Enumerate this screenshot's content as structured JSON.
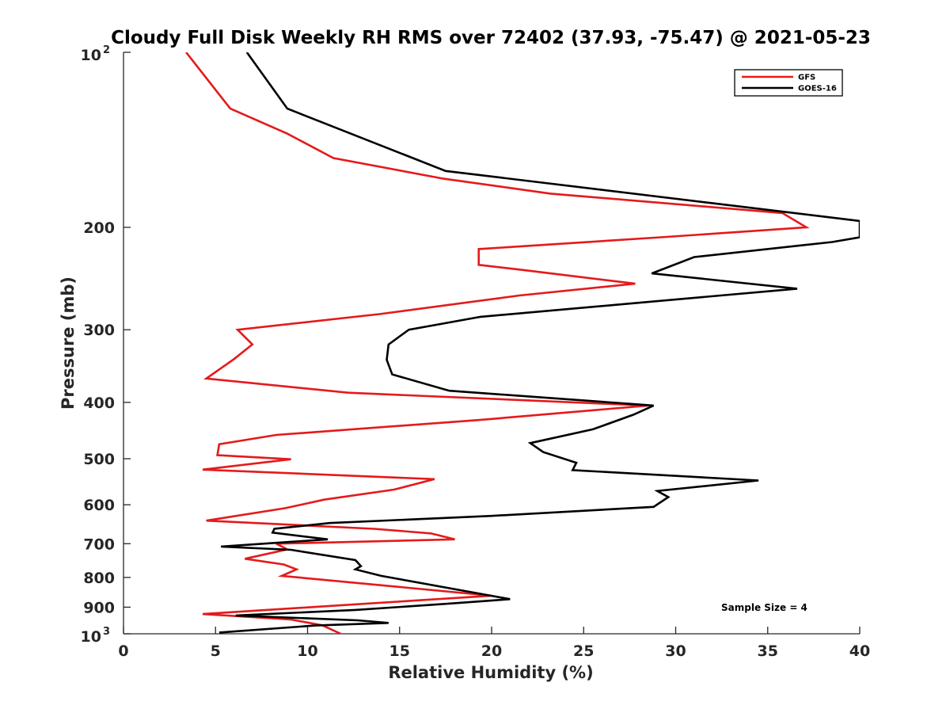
{
  "chart_data": {
    "type": "line",
    "title": "Cloudy Full Disk Weekly RH RMS over 72402 (37.93, -75.47) @ 2021-05-23",
    "xlabel": "Relative Humidity (%)",
    "ylabel": "Pressure (mb)",
    "xlim": [
      0,
      40
    ],
    "ylim": [
      100,
      1000
    ],
    "yscale": "log",
    "y_reversed": true,
    "x_ticks": [
      "0",
      "5",
      "10",
      "15",
      "20",
      "25",
      "30",
      "35",
      "40"
    ],
    "y_ticks": [
      {
        "value": 100,
        "base": "10",
        "exp": "2"
      },
      {
        "value": 200,
        "label": "200"
      },
      {
        "value": 300,
        "label": "300"
      },
      {
        "value": 400,
        "label": "400"
      },
      {
        "value": 500,
        "label": "500"
      },
      {
        "value": 600,
        "label": "600"
      },
      {
        "value": 700,
        "label": "700"
      },
      {
        "value": 800,
        "label": "800"
      },
      {
        "value": 900,
        "label": "900"
      },
      {
        "value": 1000,
        "base": "10",
        "exp": "3"
      }
    ],
    "grid": false,
    "legend_position": "top-right",
    "annotation": "Sample Size = 4",
    "series": [
      {
        "name": "GFS",
        "color": "#e41a1c",
        "points": [
          [
            3.4,
            100
          ],
          [
            5.8,
            125
          ],
          [
            8.9,
            138
          ],
          [
            11.4,
            152
          ],
          [
            17.4,
            165
          ],
          [
            23.2,
            175
          ],
          [
            35.8,
            189
          ],
          [
            37.1,
            200
          ],
          [
            29.2,
            208
          ],
          [
            19.3,
            218
          ],
          [
            19.3,
            232
          ],
          [
            21.8,
            237
          ],
          [
            27.8,
            250
          ],
          [
            21.5,
            262
          ],
          [
            13.9,
            282
          ],
          [
            6.2,
            300
          ],
          [
            7.0,
            318
          ],
          [
            6.0,
            337
          ],
          [
            4.5,
            364
          ],
          [
            12.2,
            385
          ],
          [
            28.5,
            405
          ],
          [
            19.3,
            429
          ],
          [
            8.3,
            455
          ],
          [
            5.2,
            472
          ],
          [
            5.1,
            493
          ],
          [
            9.1,
            501
          ],
          [
            4.3,
            522
          ],
          [
            16.9,
            542
          ],
          [
            14.7,
            565
          ],
          [
            10.9,
            588
          ],
          [
            8.8,
            608
          ],
          [
            4.5,
            639
          ],
          [
            13.6,
            660
          ],
          [
            16.7,
            672
          ],
          [
            18.0,
            688
          ],
          [
            8.3,
            700
          ],
          [
            8.9,
            716
          ],
          [
            6.6,
            743
          ],
          [
            8.7,
            760
          ],
          [
            9.4,
            775
          ],
          [
            8.6,
            795
          ],
          [
            20.0,
            860
          ],
          [
            4.3,
            925
          ],
          [
            9.1,
            945
          ],
          [
            10.8,
            967
          ],
          [
            11.8,
            1000
          ]
        ]
      },
      {
        "name": "GOES-16",
        "color": "#000000",
        "points": [
          [
            6.7,
            100
          ],
          [
            8.9,
            125
          ],
          [
            17.5,
            160
          ],
          [
            40.0,
            195
          ],
          [
            40.0,
            208
          ],
          [
            38.5,
            212
          ],
          [
            31.0,
            225
          ],
          [
            28.7,
            240
          ],
          [
            36.6,
            255
          ],
          [
            19.4,
            285
          ],
          [
            15.5,
            300
          ],
          [
            14.4,
            318
          ],
          [
            14.3,
            338
          ],
          [
            14.6,
            358
          ],
          [
            17.7,
            382
          ],
          [
            28.8,
            405
          ],
          [
            27.7,
            420
          ],
          [
            25.5,
            445
          ],
          [
            22.1,
            470
          ],
          [
            22.8,
            487
          ],
          [
            24.6,
            508
          ],
          [
            24.4,
            523
          ],
          [
            34.5,
            545
          ],
          [
            29.0,
            568
          ],
          [
            29.6,
            582
          ],
          [
            28.8,
            605
          ],
          [
            20.0,
            627
          ],
          [
            11.2,
            645
          ],
          [
            8.2,
            660
          ],
          [
            8.1,
            670
          ],
          [
            11.1,
            688
          ],
          [
            5.3,
            708
          ],
          [
            9.1,
            717
          ],
          [
            12.6,
            747
          ],
          [
            12.9,
            765
          ],
          [
            12.6,
            775
          ],
          [
            14.0,
            795
          ],
          [
            21.0,
            872
          ],
          [
            17.6,
            888
          ],
          [
            12.6,
            910
          ],
          [
            6.1,
            930
          ],
          [
            12.7,
            948
          ],
          [
            14.4,
            958
          ],
          [
            10.4,
            968
          ],
          [
            5.2,
            995
          ]
        ]
      }
    ]
  }
}
